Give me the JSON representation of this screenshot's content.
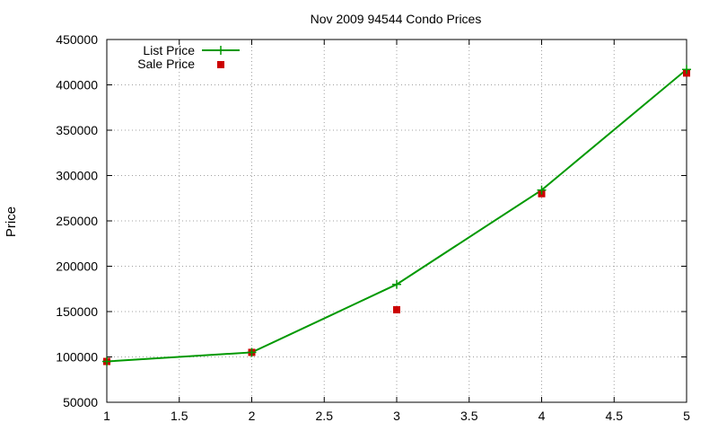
{
  "chart_data": {
    "type": "line",
    "title": "Nov 2009 94544 Condo Prices",
    "xlabel": "",
    "ylabel": "Price",
    "xlim": [
      1,
      5
    ],
    "ylim": [
      50000,
      450000
    ],
    "x_ticks": [
      1,
      1.5,
      2,
      2.5,
      3,
      3.5,
      4,
      4.5,
      5
    ],
    "x_tick_labels": [
      "1",
      "1.5",
      "2",
      "2.5",
      "3",
      "3.5",
      "4",
      "4.5",
      "5"
    ],
    "y_ticks": [
      50000,
      100000,
      150000,
      200000,
      250000,
      300000,
      350000,
      400000,
      450000
    ],
    "y_tick_labels": [
      "50000",
      "100000",
      "150000",
      "200000",
      "250000",
      "300000",
      "350000",
      "400000",
      "450000"
    ],
    "grid": true,
    "legend_position": "top-left",
    "series": [
      {
        "name": "List Price",
        "style": "line with plus markers",
        "color": "#009900",
        "x": [
          1,
          2,
          3,
          4,
          5
        ],
        "y": [
          95000,
          105000,
          180000,
          284000,
          417000
        ]
      },
      {
        "name": "Sale Price",
        "style": "square markers",
        "color": "#cc0000",
        "x": [
          1,
          2,
          3,
          4,
          5
        ],
        "y": [
          95000,
          105000,
          152000,
          280000,
          413000
        ]
      }
    ]
  }
}
